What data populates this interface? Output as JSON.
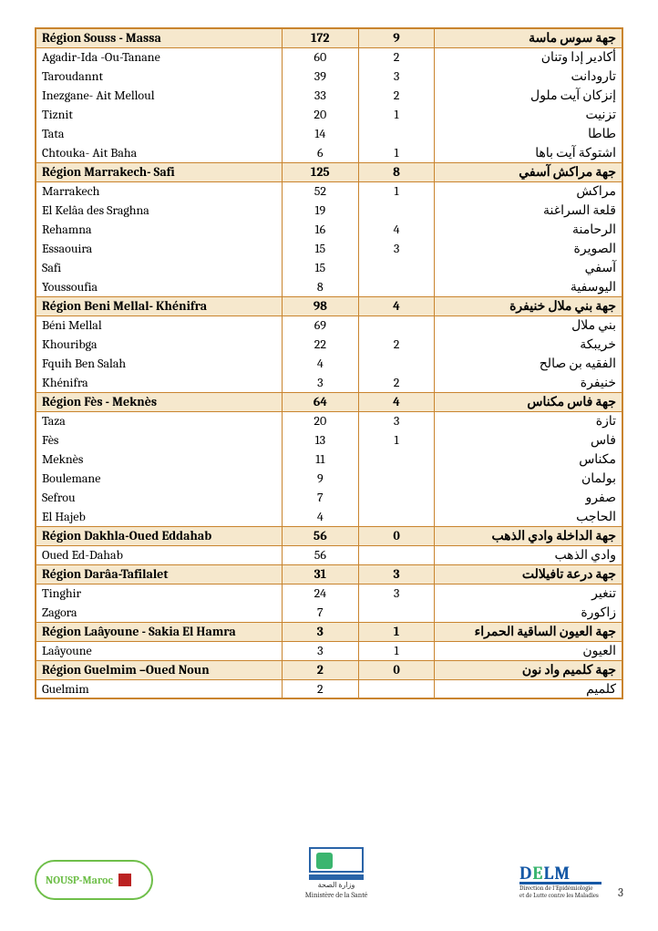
{
  "table": {
    "colors": {
      "border": "#c9842e",
      "header_bg": "#f6e8cd"
    },
    "col_widths_pct": [
      42,
      13,
      13,
      32
    ],
    "rows": [
      {
        "type": "region",
        "fr": "Région Souss - Massa",
        "v1": "172",
        "v2": "9",
        "ar": "جهة سوس ماسة"
      },
      {
        "type": "data",
        "fr": "Agadir-Ida -Ou-Tanane",
        "v1": "60",
        "v2": "2",
        "ar": "أكادير إدا وتنان"
      },
      {
        "type": "data",
        "fr": "Taroudannt",
        "v1": "39",
        "v2": "3",
        "ar": "تارودانت"
      },
      {
        "type": "data",
        "fr": "Inezgane- Ait Melloul",
        "v1": "33",
        "v2": "2",
        "ar": "إنزكان آيت ملول"
      },
      {
        "type": "data",
        "fr": "Tiznit",
        "v1": "20",
        "v2": "1",
        "ar": "تزنيت"
      },
      {
        "type": "data",
        "fr": "Tata",
        "v1": "14",
        "v2": "",
        "ar": "طاطا"
      },
      {
        "type": "data",
        "fr": "Chtouka- Ait Baha",
        "v1": "6",
        "v2": "1",
        "ar": "اشتوكة آيت باها"
      },
      {
        "type": "region",
        "fr": "Région Marrakech- Safi",
        "v1": "125",
        "v2": "8",
        "ar": "جهة مراكش آسفي"
      },
      {
        "type": "data",
        "fr": "Marrakech",
        "v1": "52",
        "v2": "1",
        "ar": "مراكش"
      },
      {
        "type": "data",
        "fr": "El Kelâa des  Sraghna",
        "v1": "19",
        "v2": "",
        "ar": "قلعة السراغنة"
      },
      {
        "type": "data",
        "fr": "Rehamna",
        "v1": "16",
        "v2": "4",
        "ar": "الرحامنة"
      },
      {
        "type": "data",
        "fr": "Essaouira",
        "v1": "15",
        "v2": "3",
        "ar": "الصويرة"
      },
      {
        "type": "data",
        "fr": "Safi",
        "v1": "15",
        "v2": "",
        "ar": "آسفي"
      },
      {
        "type": "data",
        "fr": "Youssoufia",
        "v1": "8",
        "v2": "",
        "ar": "اليوسفية"
      },
      {
        "type": "region",
        "fr": "Région Beni Mellal- Khénifra",
        "v1": "98",
        "v2": "4",
        "ar": "جهة بني ملال خنيفرة"
      },
      {
        "type": "data",
        "fr": "Béni Mellal",
        "v1": "69",
        "v2": "",
        "ar": "بني ملال"
      },
      {
        "type": "data",
        "fr": "Khouribga",
        "v1": "22",
        "v2": "2",
        "ar": "خريبكة"
      },
      {
        "type": "data",
        "fr": "Fquih Ben Salah",
        "v1": "4",
        "v2": "",
        "ar": "الفقيه بن صالح"
      },
      {
        "type": "data",
        "fr": "Khénifra",
        "v1": "3",
        "v2": "2",
        "ar": "خنيفرة"
      },
      {
        "type": "region",
        "fr": "Région Fès - Meknès",
        "v1": "64",
        "v2": "4",
        "ar": "جهة فاس مكناس"
      },
      {
        "type": "data",
        "fr": "Taza",
        "v1": "20",
        "v2": "3",
        "ar": "تازة"
      },
      {
        "type": "data",
        "fr": "Fès",
        "v1": "13",
        "v2": "1",
        "ar": "فاس"
      },
      {
        "type": "data",
        "fr": "Meknès",
        "v1": "11",
        "v2": "",
        "ar": "مكناس"
      },
      {
        "type": "data",
        "fr": "Boulemane",
        "v1": "9",
        "v2": "",
        "ar": "بولمان"
      },
      {
        "type": "data",
        "fr": "Sefrou",
        "v1": "7",
        "v2": "",
        "ar": "صفرو"
      },
      {
        "type": "data",
        "fr": "El  Hajeb",
        "v1": "4",
        "v2": "",
        "ar": "الحاجب"
      },
      {
        "type": "region",
        "fr": "Région Dakhla-Oued Eddahab",
        "v1": "56",
        "v2": "0",
        "ar": "جهة الداخلة وادي الذهب"
      },
      {
        "type": "data",
        "fr": "Oued Ed-Dahab",
        "v1": "56",
        "v2": "",
        "ar": "وادي الذهب"
      },
      {
        "type": "region",
        "fr": "Région Darâa-Tafilalet",
        "v1": "31",
        "v2": "3",
        "ar": "جهة درعة تافيلالت"
      },
      {
        "type": "data",
        "fr": "Tinghir",
        "v1": "24",
        "v2": "3",
        "ar": "تنغير"
      },
      {
        "type": "data",
        "fr": "Zagora",
        "v1": "7",
        "v2": "",
        "ar": "زاكورة"
      },
      {
        "type": "region",
        "fr": "Région Laâyoune - Sakia El Hamra",
        "v1": "3",
        "v2": "1",
        "ar": "جهة العيون الساقية الحمراء"
      },
      {
        "type": "data",
        "fr": "Laâyoune",
        "v1": "3",
        "v2": "1",
        "ar": "العيون"
      },
      {
        "type": "region",
        "fr": "Région Guelmim –Oued Noun",
        "v1": "2",
        "v2": "0",
        "ar": "جهة كلميم واد نون"
      },
      {
        "type": "data",
        "fr": "Guelmim",
        "v1": "2",
        "v2": "",
        "ar": "كلميم"
      }
    ]
  },
  "footer": {
    "nousp_label": "NOUSP-Maroc",
    "ministry_ar": "وزارة الصحة",
    "ministry_fr": "Ministère de la Santé",
    "delm_label": "DELM",
    "delm_sub1": "Direction de l'Epidémiologie",
    "delm_sub2": "et de Lutte contre les Maladies",
    "page_number": "3"
  }
}
